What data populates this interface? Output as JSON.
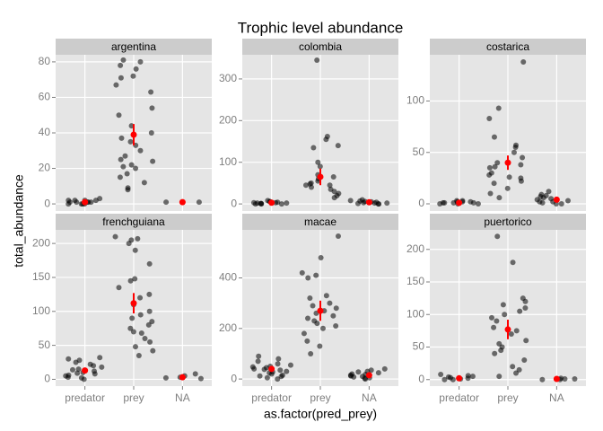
{
  "chart_data": {
    "type": "scatter",
    "title": "Trophic level abundance",
    "xlabel": "as.factor(pred_prey)",
    "ylabel": "total_abundance",
    "categories": [
      "predator",
      "prey",
      "NA"
    ],
    "point_color": "#000000",
    "summary_color": "#ff0000",
    "grid": true,
    "facets": [
      {
        "title": "argentina",
        "ylim": [
          -4,
          84
        ],
        "yticks": [
          0,
          20,
          40,
          60,
          80
        ],
        "values": [
          [
            0,
            1,
            1,
            2,
            0,
            1,
            2,
            3,
            1,
            0,
            1,
            2,
            1,
            0,
            2
          ],
          [
            81,
            80,
            78,
            76,
            72,
            71,
            67,
            63,
            54,
            50,
            44,
            40,
            37,
            35,
            33,
            30,
            27,
            25,
            24,
            22,
            21,
            20,
            17,
            15,
            12,
            9,
            8
          ],
          [
            1,
            1
          ]
        ],
        "mean": [
          1,
          39,
          1
        ],
        "error": [
          0.3,
          6,
          0.2
        ]
      },
      {
        "title": "colombia",
        "ylim": [
          -17,
          358
        ],
        "yticks": [
          0,
          100,
          200,
          300
        ],
        "values": [
          [
            0,
            2,
            5,
            1,
            3,
            8,
            0,
            4,
            2,
            1,
            6,
            0,
            3
          ],
          [
            345,
            162,
            155,
            140,
            135,
            100,
            90,
            70,
            65,
            60,
            55,
            50,
            48,
            45,
            45,
            40,
            35,
            30,
            25,
            20,
            15
          ],
          [
            0,
            2,
            5,
            8,
            10,
            3,
            1,
            6,
            4,
            0,
            7,
            2
          ]
        ],
        "mean": [
          3,
          65,
          4
        ],
        "error": [
          1,
          20,
          1.5
        ]
      },
      {
        "title": "costarica",
        "ylim": [
          -7,
          145
        ],
        "yticks": [
          0,
          50,
          100
        ],
        "values": [
          [
            0,
            1,
            2,
            3,
            1,
            0,
            2,
            1,
            3,
            0,
            1,
            2
          ],
          [
            138,
            93,
            83,
            65,
            57,
            55,
            50,
            45,
            40,
            38,
            36,
            35,
            30,
            28,
            26,
            25,
            22,
            20,
            15,
            10,
            6
          ],
          [
            0,
            2,
            5,
            8,
            12,
            3,
            1,
            6,
            4,
            0,
            7,
            2,
            9
          ]
        ],
        "mean": [
          1,
          40,
          4
        ],
        "error": [
          0.3,
          7,
          1
        ]
      },
      {
        "title": "frenchguiana",
        "ylim": [
          -10,
          220
        ],
        "yticks": [
          0,
          50,
          100,
          150,
          200
        ],
        "values": [
          [
            0,
            2,
            5,
            8,
            10,
            12,
            15,
            18,
            20,
            22,
            25,
            28,
            30,
            32,
            6,
            3,
            14,
            9
          ],
          [
            210,
            207,
            205,
            200,
            190,
            170,
            148,
            145,
            135,
            125,
            120,
            110,
            100,
            95,
            90,
            85,
            80,
            75,
            70,
            68,
            60,
            55,
            48,
            42,
            35
          ],
          [
            8,
            3,
            2,
            1,
            5
          ]
        ],
        "mean": [
          13,
          112,
          3
        ],
        "error": [
          3,
          15,
          1.5
        ]
      },
      {
        "title": "macae",
        "ylim": [
          -28,
          590
        ],
        "yticks": [
          0,
          200,
          400
        ],
        "values": [
          [
            0,
            5,
            10,
            15,
            20,
            25,
            30,
            35,
            40,
            45,
            50,
            55,
            60,
            70,
            80,
            90,
            12,
            28,
            38,
            48
          ],
          [
            565,
            480,
            420,
            410,
            400,
            330,
            320,
            300,
            290,
            280,
            270,
            260,
            250,
            240,
            230,
            220,
            210,
            200,
            180,
            150,
            130,
            100
          ],
          [
            0,
            5,
            10,
            15,
            20,
            25,
            30,
            35,
            40,
            8,
            18,
            28,
            3,
            12
          ]
        ],
        "mean": [
          40,
          270,
          15
        ],
        "error": [
          8,
          40,
          4
        ]
      },
      {
        "title": "puertorico",
        "ylim": [
          -10,
          230
        ],
        "yticks": [
          0,
          50,
          100,
          150,
          200
        ],
        "values": [
          [
            0,
            2,
            5,
            8,
            1,
            3,
            0,
            4,
            6,
            2
          ],
          [
            220,
            180,
            125,
            120,
            115,
            110,
            105,
            100,
            95,
            90,
            80,
            75,
            70,
            60,
            55,
            50,
            45,
            40,
            30,
            20,
            15,
            10,
            5
          ],
          [
            0,
            0,
            1,
            1,
            2
          ]
        ],
        "mean": [
          2,
          77,
          1
        ],
        "error": [
          0.8,
          15,
          0.4
        ]
      }
    ]
  }
}
